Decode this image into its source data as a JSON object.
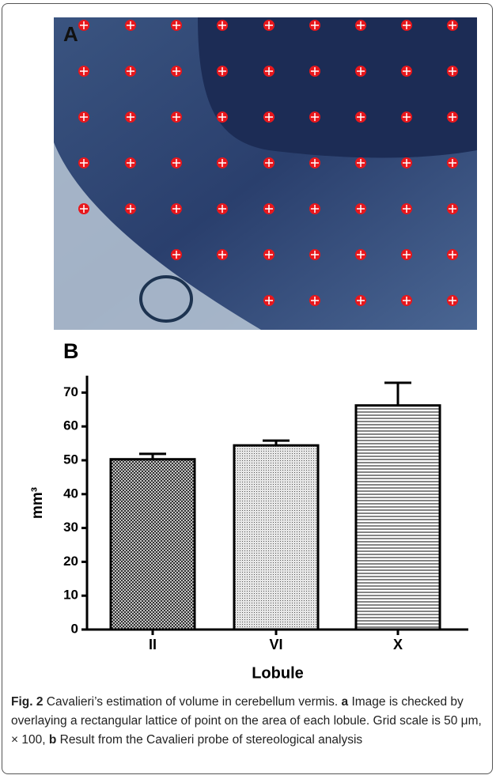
{
  "panel_a": {
    "label": "A"
  },
  "chart_data": {
    "type": "bar",
    "panel_label": "B",
    "ylabel": "mm³",
    "xlabel": "Lobule",
    "categories": [
      "II",
      "VI",
      "X"
    ],
    "values": [
      50.3,
      54.4,
      66.2
    ],
    "errors": [
      1.6,
      1.4,
      6.7
    ],
    "color": "#000000",
    "ylim": [
      0,
      75
    ],
    "yticks": [
      0,
      10,
      20,
      30,
      40,
      50,
      60,
      70
    ]
  },
  "caption": {
    "segments": [
      {
        "text": "Fig. 2",
        "bold": true
      },
      {
        "text": " Cavalieri’s estimation of volume in cerebellum vermis. ",
        "bold": false
      },
      {
        "text": "a",
        "bold": true
      },
      {
        "text": " Image is checked by overlaying a rectangular lattice of point on the area of each lobule. Grid scale is 50 μm, × 100, ",
        "bold": false
      },
      {
        "text": "b",
        "bold": true
      },
      {
        "text": " Result from the Cavalieri probe of stereological analysis",
        "bold": false
      }
    ]
  }
}
